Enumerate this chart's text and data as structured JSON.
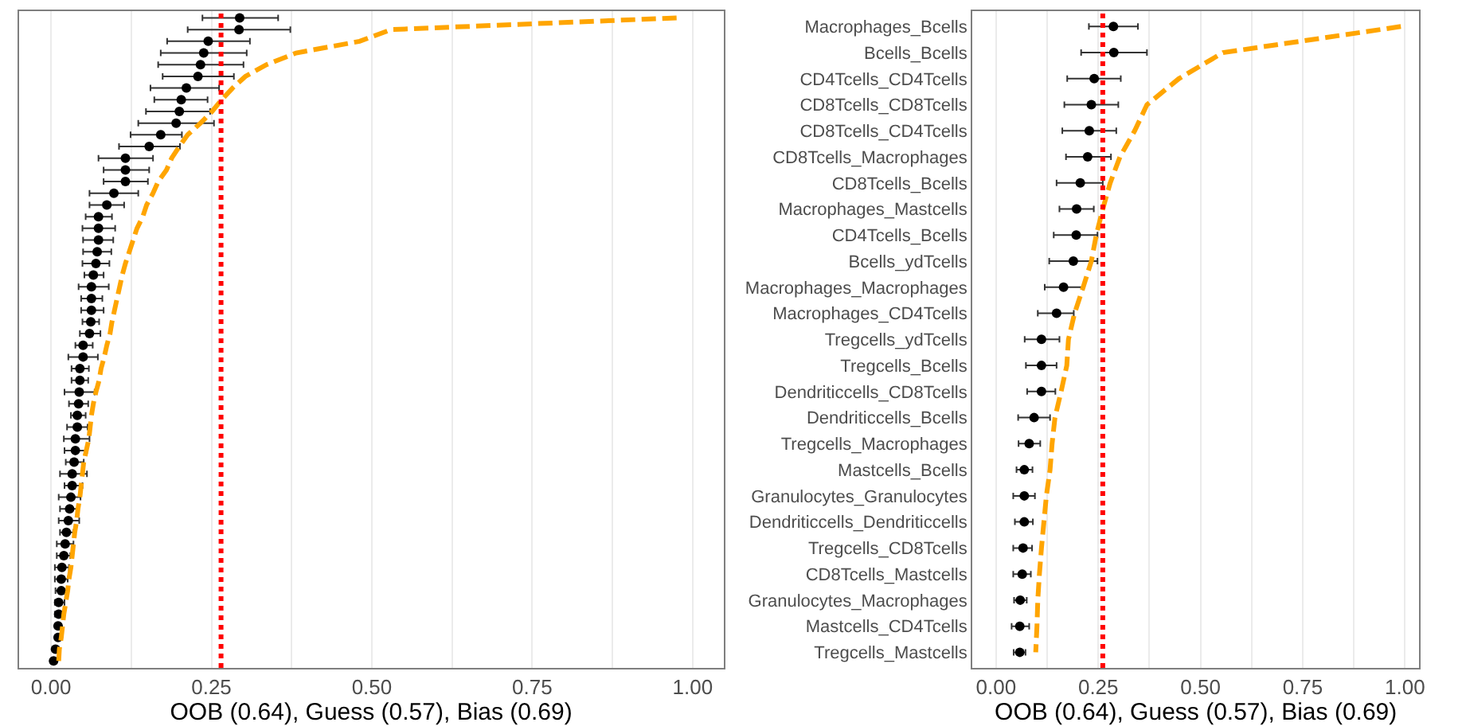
{
  "chart_data": [
    {
      "type": "scatter",
      "orientation": "horizontal",
      "xlabel": "OOB (0.64), Guess (0.57), Bias (0.69)",
      "tick_labels": "x",
      "grid": "x",
      "categories": [
        null,
        null,
        null,
        null,
        null,
        null,
        null,
        null,
        null,
        null,
        null,
        null,
        null,
        null,
        null,
        null,
        null,
        null,
        null,
        null,
        null,
        null,
        null,
        null,
        null,
        null,
        null,
        null,
        null,
        null,
        null,
        null,
        null,
        null,
        null,
        null,
        null,
        null,
        null,
        null,
        null,
        null,
        null,
        null,
        null,
        null,
        null,
        null,
        null,
        null,
        null,
        null,
        null,
        null,
        null,
        null
      ],
      "xlim": [
        -0.05,
        1.048
      ],
      "xticks": [
        {
          "value": 0,
          "label": "0.00"
        },
        {
          "value": 0.125,
          "label": null
        },
        {
          "value": 0.25,
          "label": "0.25"
        },
        {
          "value": 0.375,
          "label": null
        },
        {
          "value": 0.5,
          "label": "0.50"
        },
        {
          "value": 0.625,
          "label": null
        },
        {
          "value": 0.75,
          "label": "0.75"
        },
        {
          "value": 0.875,
          "label": null
        },
        {
          "value": 1,
          "label": "1.00"
        }
      ],
      "series": [
        {
          "type": "scatter",
          "marker": "circle",
          "color": "#000000",
          "values": [
            0.294,
            0.293,
            0.245,
            0.238,
            0.233,
            0.229,
            0.211,
            0.203,
            0.2,
            0.195,
            0.171,
            0.153,
            0.116,
            0.116,
            0.116,
            0.098,
            0.087,
            0.074,
            0.074,
            0.074,
            0.072,
            0.07,
            0.066,
            0.063,
            0.063,
            0.063,
            0.062,
            0.06,
            0.05,
            0.05,
            0.045,
            0.045,
            0.044,
            0.043,
            0.041,
            0.041,
            0.038,
            0.038,
            0.036,
            0.033,
            0.033,
            0.031,
            0.029,
            0.027,
            0.024,
            0.022,
            0.02,
            0.017,
            0.016,
            0.016,
            0.012,
            0.012,
            0.011,
            0.011,
            0.007,
            0.004
          ],
          "errors": [
            [
              0.236,
              0.354
            ],
            [
              0.213,
              0.373
            ],
            [
              0.181,
              0.31
            ],
            [
              0.171,
              0.305
            ],
            [
              0.167,
              0.3
            ],
            [
              0.174,
              0.285
            ],
            [
              0.155,
              0.262
            ],
            [
              0.161,
              0.244
            ],
            [
              0.148,
              0.248
            ],
            [
              0.136,
              0.254
            ],
            [
              0.124,
              0.204
            ],
            [
              0.106,
              0.201
            ],
            [
              0.074,
              0.159
            ],
            [
              0.082,
              0.153
            ],
            [
              0.082,
              0.151
            ],
            [
              0.06,
              0.136
            ],
            [
              0.06,
              0.114
            ],
            [
              0.054,
              0.095
            ],
            [
              0.049,
              0.1
            ],
            [
              0.05,
              0.097
            ],
            [
              0.05,
              0.094
            ],
            [
              0.049,
              0.091
            ],
            [
              0.052,
              0.082
            ],
            [
              0.043,
              0.09
            ],
            [
              0.047,
              0.08
            ],
            [
              0.047,
              0.082
            ],
            [
              0.049,
              0.075
            ],
            [
              0.045,
              0.077
            ],
            [
              0.038,
              0.065
            ],
            [
              0.027,
              0.073
            ],
            [
              0.032,
              0.059
            ],
            [
              0.032,
              0.058
            ],
            [
              0.021,
              0.068
            ],
            [
              0.028,
              0.058
            ],
            [
              0.031,
              0.054
            ],
            [
              0.025,
              0.057
            ],
            [
              0.02,
              0.06
            ],
            [
              0.021,
              0.056
            ],
            [
              0.023,
              0.051
            ],
            [
              0.014,
              0.056
            ],
            [
              0.021,
              0.049
            ],
            [
              0.012,
              0.046
            ],
            [
              0.014,
              0.043
            ],
            [
              0.012,
              0.044
            ],
            [
              0.014,
              0.035
            ],
            [
              0.009,
              0.035
            ],
            [
              0.009,
              0.03
            ],
            [
              0.006,
              0.028
            ],
            [
              0.006,
              0.026
            ],
            [
              0.007,
              0.026
            ],
            [
              0.006,
              0.021
            ],
            [
              0.006,
              0.017
            ],
            null,
            null,
            null,
            null
          ]
        },
        {
          "type": "line",
          "line_style": "dashed",
          "color": "#ffa500",
          "values": [
            0.975,
            0.53,
            0.481,
            0.382,
            0.336,
            0.303,
            0.283,
            0.266,
            0.251,
            0.233,
            0.213,
            0.2,
            0.188,
            0.18,
            0.167,
            0.159,
            0.149,
            0.143,
            0.134,
            0.128,
            0.122,
            0.116,
            0.111,
            0.107,
            0.103,
            0.099,
            0.095,
            0.092,
            0.087,
            0.083,
            0.078,
            0.075,
            0.07,
            0.066,
            0.063,
            0.061,
            0.059,
            0.055,
            0.051,
            0.049,
            0.047,
            0.045,
            0.042,
            0.04,
            0.037,
            0.035,
            0.033,
            0.031,
            0.028,
            0.026,
            0.023,
            0.02,
            0.018,
            0.016,
            0.013,
            0.012
          ]
        }
      ],
      "ref_lines": [
        {
          "axis": "x",
          "value": 0.265,
          "color": "#ff0000",
          "line_style": "dotted"
        }
      ]
    },
    {
      "type": "scatter",
      "orientation": "horizontal",
      "xlabel": "OOB (0.64), Guess (0.57), Bias (0.69)",
      "grid": "x",
      "categories": [
        "Macrophages_Bcells",
        "Bcells_Bcells",
        "CD4Tcells_CD4Tcells",
        "CD8Tcells_CD8Tcells",
        "CD8Tcells_CD4Tcells",
        "CD8Tcells_Macrophages",
        "CD8Tcells_Bcells",
        "Macrophages_Mastcells",
        "CD4Tcells_Bcells",
        "Bcells_ydTcells",
        "Macrophages_Macrophages",
        "Macrophages_CD4Tcells",
        "Tregcells_ydTcells",
        "Tregcells_Bcells",
        "Dendriticcells_CD8Tcells",
        "Dendriticcells_Bcells",
        "Tregcells_Macrophages",
        "Mastcells_Bcells",
        "Granulocytes_Granulocytes",
        "Dendriticcells_Dendriticcells",
        "Tregcells_CD8Tcells",
        "CD8Tcells_Mastcells",
        "Granulocytes_Macrophages",
        "Mastcells_CD4Tcells",
        "Tregcells_Mastcells"
      ],
      "xlim": [
        -0.058,
        1.035
      ],
      "xticks": [
        {
          "value": 0,
          "label": "0.00"
        },
        {
          "value": 0.125,
          "label": null
        },
        {
          "value": 0.25,
          "label": "0.25"
        },
        {
          "value": 0.375,
          "label": null
        },
        {
          "value": 0.5,
          "label": "0.50"
        },
        {
          "value": 0.625,
          "label": null
        },
        {
          "value": 0.75,
          "label": "0.75"
        },
        {
          "value": 0.875,
          "label": null
        },
        {
          "value": 1,
          "label": "1.00"
        }
      ],
      "series": [
        {
          "type": "scatter",
          "marker": "circle",
          "color": "#000000",
          "values": [
            0.287,
            0.288,
            0.24,
            0.233,
            0.228,
            0.224,
            0.206,
            0.197,
            0.196,
            0.189,
            0.165,
            0.148,
            0.111,
            0.111,
            0.111,
            0.093,
            0.081,
            0.069,
            0.069,
            0.069,
            0.066,
            0.064,
            0.059,
            0.058,
            0.058
          ],
          "errors": [
            [
              0.227,
              0.347
            ],
            [
              0.208,
              0.369
            ],
            [
              0.174,
              0.305
            ],
            [
              0.167,
              0.299
            ],
            [
              0.162,
              0.294
            ],
            [
              0.171,
              0.281
            ],
            [
              0.148,
              0.261
            ],
            [
              0.155,
              0.239
            ],
            [
              0.141,
              0.248
            ],
            [
              0.13,
              0.248
            ],
            [
              0.119,
              0.213
            ],
            [
              0.102,
              0.19
            ],
            [
              0.07,
              0.155
            ],
            [
              0.073,
              0.148
            ],
            [
              0.076,
              0.145
            ],
            [
              0.054,
              0.132
            ],
            [
              0.055,
              0.108
            ],
            [
              0.05,
              0.089
            ],
            [
              0.042,
              0.095
            ],
            [
              0.046,
              0.09
            ],
            [
              0.042,
              0.088
            ],
            [
              0.042,
              0.085
            ],
            [
              0.044,
              0.075
            ],
            [
              0.038,
              0.081
            ],
            [
              0.043,
              0.072
            ]
          ]
        },
        {
          "type": "line",
          "line_style": "dashed",
          "color": "#ffa500",
          "values": [
            0.99,
            0.555,
            0.447,
            0.369,
            0.339,
            0.303,
            0.279,
            0.261,
            0.245,
            0.233,
            0.213,
            0.192,
            0.177,
            0.173,
            0.159,
            0.144,
            0.137,
            0.132,
            0.123,
            0.117,
            0.111,
            0.106,
            0.102,
            0.1,
            0.097
          ]
        }
      ],
      "ref_lines": [
        {
          "axis": "x",
          "value": 0.261,
          "color": "#ff0000",
          "line_style": "dotted"
        }
      ]
    }
  ]
}
